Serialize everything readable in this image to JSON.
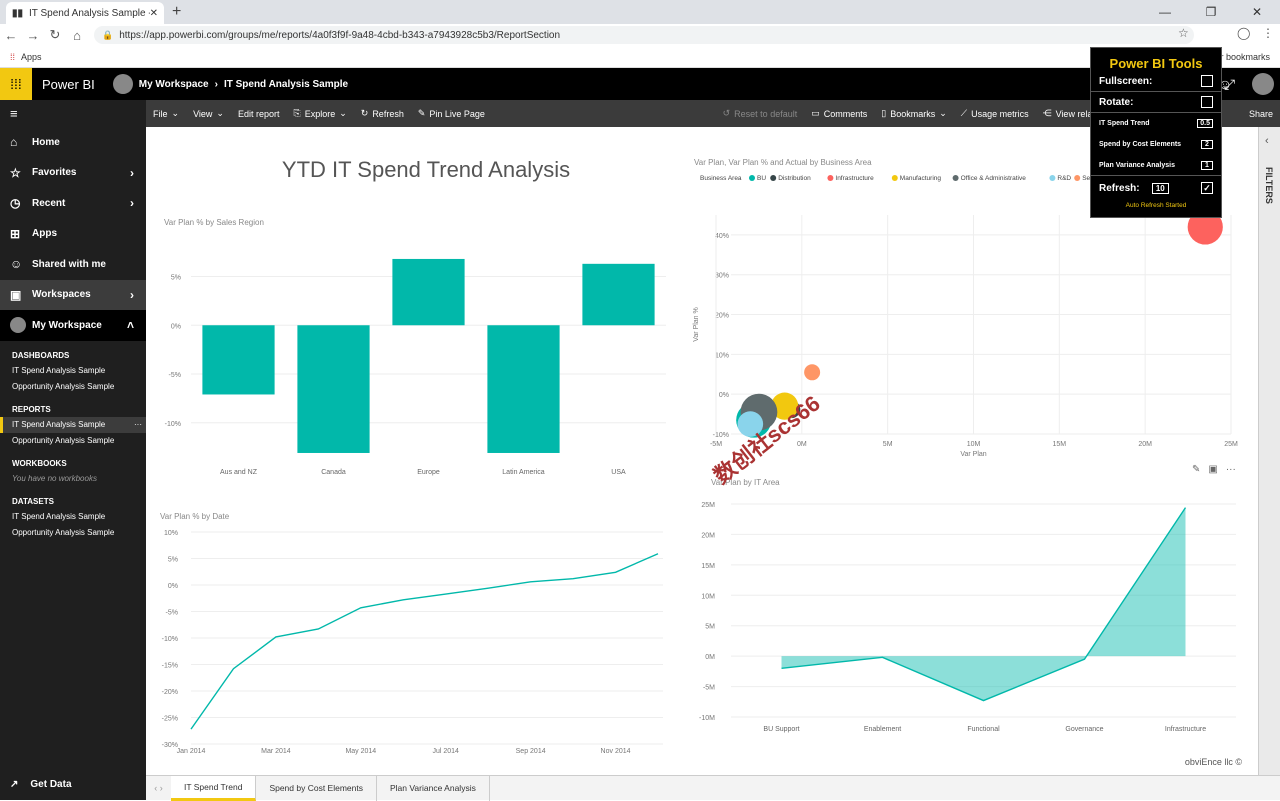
{
  "browser": {
    "tab_title": "IT Spend Analysis Sample - Powe",
    "url": "https://app.powerbi.com/groups/me/reports/4a0f3f9f-9a48-4cbd-b343-a7943928c5b3/ReportSection",
    "apps_label": "Apps",
    "bookmarks_label": "er bookmarks"
  },
  "app": {
    "name": "Power BI",
    "workspace": "My Workspace",
    "report": "IT Spend Analysis Sample"
  },
  "toolbar": {
    "file": "File",
    "view": "View",
    "edit": "Edit report",
    "explore": "Explore",
    "refresh": "Refresh",
    "pin": "Pin Live Page",
    "reset": "Reset to default",
    "comments": "Comments",
    "bookmarks": "Bookmarks",
    "usage": "Usage metrics",
    "related": "View related",
    "share": "Share"
  },
  "sidebar": {
    "home": "Home",
    "favorites": "Favorites",
    "recent": "Recent",
    "apps": "Apps",
    "shared": "Shared with me",
    "workspaces": "Workspaces",
    "my_workspace": "My Workspace",
    "dashboards_hdr": "DASHBOARDS",
    "dashboards": [
      "IT Spend Analysis Sample",
      "Opportunity Analysis Sample"
    ],
    "reports_hdr": "REPORTS",
    "reports": [
      "IT Spend Analysis Sample",
      "Opportunity Analysis Sample"
    ],
    "workbooks_hdr": "WORKBOOKS",
    "workbooks_empty": "You have no workbooks",
    "datasets_hdr": "DATASETS",
    "datasets": [
      "IT Spend Analysis Sample",
      "Opportunity Analysis Sample"
    ],
    "get_data": "Get Data"
  },
  "report": {
    "title": "YTD IT Spend Trend Analysis",
    "credit": "obviEnce llc ©",
    "watermark": "数创社scs66"
  },
  "filters_label": "FILTERS",
  "pages": [
    "IT Spend Trend",
    "Spend by Cost Elements",
    "Plan Variance Analysis"
  ],
  "tools": {
    "title": "Power BI Tools",
    "fullscreen": "Fullscreen:",
    "rotate": "Rotate:",
    "page1": "IT Spend Trend",
    "page1_val": "0.5",
    "page2": "Spend by Cost Elements",
    "page2_val": "2",
    "page3": "Plan Variance Analysis",
    "page3_val": "1",
    "refresh": "Refresh:",
    "refresh_val": "10",
    "status": "Auto Refresh Started"
  },
  "chart_data": [
    {
      "type": "bar",
      "title": "Var Plan % by Sales Region",
      "categories": [
        "Aus and NZ",
        "Canada",
        "Europe",
        "Latin America",
        "USA"
      ],
      "values": [
        -7.1,
        -13.1,
        6.8,
        -13.1,
        6.3
      ],
      "ylim": [
        -13,
        7
      ],
      "yticks": [
        "5%",
        "0%",
        "-5%",
        "-10%"
      ],
      "color": "#01b8aa"
    },
    {
      "type": "scatter",
      "title": "Var Plan, Var Plan % and Actual by Business Area",
      "legend_title": "Business Area",
      "xlabel": "Var Plan",
      "ylabel": "Var Plan %",
      "xticks": [
        "-5M",
        "0M",
        "5M",
        "10M",
        "15M",
        "20M",
        "25M"
      ],
      "yticks": [
        "40%",
        "30%",
        "20%",
        "10%",
        "0%",
        "-10%"
      ],
      "xlim": [
        -5,
        25
      ],
      "ylim": [
        -10,
        45
      ],
      "series": [
        {
          "name": "BU",
          "color": "#01b8aa"
        },
        {
          "name": "Distribution",
          "color": "#374649"
        },
        {
          "name": "Infrastructure",
          "color": "#fd625e"
        },
        {
          "name": "Manufacturing",
          "color": "#f2c80f"
        },
        {
          "name": "Office & Administrative",
          "color": "#5f6b6d"
        },
        {
          "name": "R&D",
          "color": "#8ad4eb"
        },
        {
          "name": "Services",
          "color": "#fe9666"
        }
      ],
      "points": [
        {
          "name": "BU",
          "x": -2.8,
          "y": -6.5,
          "r": 2.2
        },
        {
          "name": "Distribution",
          "x": -0.6,
          "y": -3.8,
          "r": 1.1
        },
        {
          "name": "Infrastructure",
          "x": 23.5,
          "y": 42,
          "r": 2.2
        },
        {
          "name": "Manufacturing",
          "x": -1.0,
          "y": -3.0,
          "r": 1.7
        },
        {
          "name": "Office & Administrative",
          "x": -2.5,
          "y": -4.5,
          "r": 2.3
        },
        {
          "name": "R&D",
          "x": -3.0,
          "y": -7.5,
          "r": 1.6
        },
        {
          "name": "Services",
          "x": 0.6,
          "y": 5.5,
          "r": 1.0
        }
      ]
    },
    {
      "type": "line",
      "title": "Var Plan % by Date",
      "x": [
        "Jan 2014",
        "Feb 2014",
        "Mar 2014",
        "Apr 2014",
        "May 2014",
        "Jun 2014",
        "Jul 2014",
        "Aug 2014",
        "Sep 2014",
        "Oct 2014",
        "Nov 2014",
        "Dec 2014"
      ],
      "xticks": [
        "Jan 2014",
        "Mar 2014",
        "May 2014",
        "Jul 2014",
        "Sep 2014",
        "Nov 2014"
      ],
      "values": [
        -27.2,
        -15.8,
        -9.8,
        -8.3,
        -4.3,
        -2.8,
        -1.7,
        -0.6,
        0.6,
        1.2,
        2.4,
        5.9
      ],
      "ylim": [
        -30,
        10
      ],
      "yticks": [
        "10%",
        "5%",
        "0%",
        "-5%",
        "-10%",
        "-15%",
        "-20%",
        "-25%",
        "-30%"
      ],
      "color": "#01b8aa"
    },
    {
      "type": "area",
      "title": "Var Plan by IT Area",
      "categories": [
        "BU Support",
        "Enablement",
        "Functional",
        "Governance",
        "Infrastructure"
      ],
      "values": [
        -2.0,
        -0.2,
        -7.3,
        -0.5,
        24.4
      ],
      "ylim": [
        -10,
        25
      ],
      "yticks": [
        "25M",
        "20M",
        "15M",
        "10M",
        "5M",
        "0M",
        "-5M",
        "-10M"
      ],
      "color": "#01b8aa"
    }
  ]
}
